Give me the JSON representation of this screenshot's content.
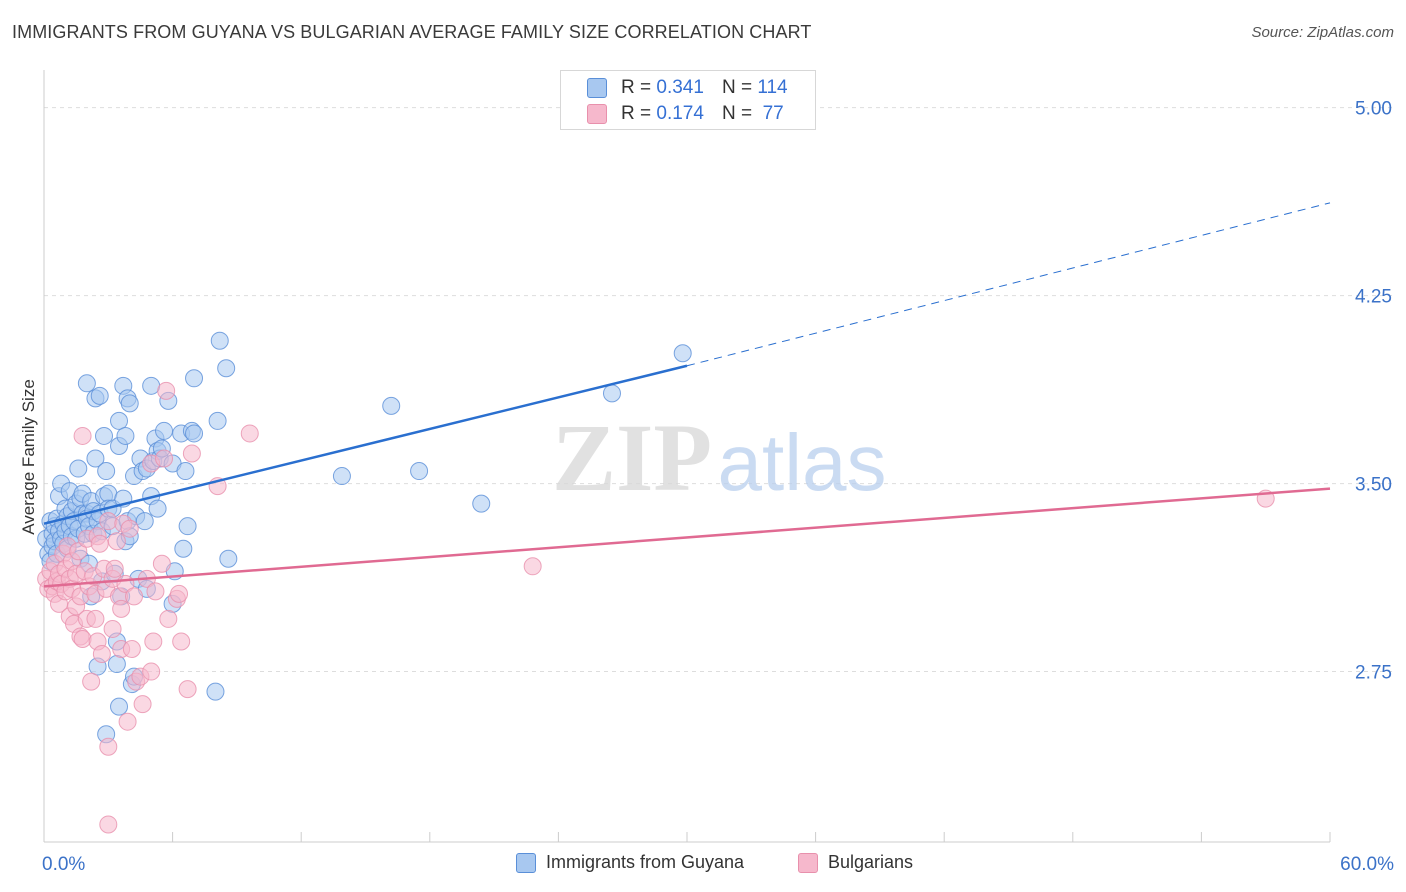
{
  "title": "IMMIGRANTS FROM GUYANA VS BULGARIAN AVERAGE FAMILY SIZE CORRELATION CHART",
  "source": "Source: ZipAtlas.com",
  "watermark": {
    "zip": "ZIP",
    "atlas": "atlas"
  },
  "legend": {
    "series1": {
      "r_label": "R =",
      "r_value": "0.341",
      "n_label": "N =",
      "n_value": "114"
    },
    "series2": {
      "r_label": "R =",
      "r_value": "0.174",
      "n_label": "N =",
      "n_value": "77"
    }
  },
  "bottom_legend": {
    "series1": "Immigrants from Guyana",
    "series2": "Bulgarians"
  },
  "colors": {
    "blue_fill": "#a8c8f0",
    "blue_stroke": "#5a8fd8",
    "blue_line": "#2a6fcf",
    "pink_fill": "#f6b8cc",
    "pink_stroke": "#e890ac",
    "pink_line": "#e06a92",
    "axis_text": "#3b72c8",
    "grid": "#dddddd"
  },
  "chart_data": {
    "type": "scatter",
    "title": "IMMIGRANTS FROM GUYANA VS BULGARIAN AVERAGE FAMILY SIZE CORRELATION CHART",
    "xlabel": "",
    "ylabel": "Average Family Size",
    "xlim": [
      0,
      60
    ],
    "ylim": [
      2.07,
      5.15
    ],
    "x_tick_labels": [
      "0.0%",
      "60.0%"
    ],
    "y_ticks": [
      2.75,
      3.5,
      4.25,
      5.0
    ],
    "y_tick_labels": [
      "2.75",
      "3.50",
      "4.25",
      "5.00"
    ],
    "grid": true,
    "series": [
      {
        "name": "Immigrants from Guyana",
        "color": "#5a8fd8",
        "points": [
          [
            0.1,
            3.28
          ],
          [
            0.2,
            3.22
          ],
          [
            0.3,
            3.35
          ],
          [
            0.3,
            3.19
          ],
          [
            0.4,
            3.3
          ],
          [
            0.4,
            3.25
          ],
          [
            0.5,
            3.33
          ],
          [
            0.5,
            3.27
          ],
          [
            0.6,
            3.36
          ],
          [
            0.6,
            3.22
          ],
          [
            0.7,
            3.31
          ],
          [
            0.7,
            3.45
          ],
          [
            0.8,
            3.28
          ],
          [
            0.8,
            3.5
          ],
          [
            0.9,
            3.34
          ],
          [
            0.9,
            3.26
          ],
          [
            1.0,
            3.4
          ],
          [
            1.0,
            3.31
          ],
          [
            1.1,
            3.37
          ],
          [
            1.1,
            3.24
          ],
          [
            1.2,
            3.47
          ],
          [
            1.2,
            3.33
          ],
          [
            1.3,
            3.29
          ],
          [
            1.3,
            3.39
          ],
          [
            1.4,
            3.35
          ],
          [
            1.5,
            3.42
          ],
          [
            1.5,
            3.28
          ],
          [
            1.6,
            3.56
          ],
          [
            1.6,
            3.32
          ],
          [
            1.7,
            3.44
          ],
          [
            1.7,
            3.2
          ],
          [
            1.8,
            3.38
          ],
          [
            1.8,
            3.46
          ],
          [
            1.9,
            3.3
          ],
          [
            2.0,
            3.9
          ],
          [
            2.0,
            3.38
          ],
          [
            2.0,
            3.36
          ],
          [
            2.1,
            3.18
          ],
          [
            2.1,
            3.33
          ],
          [
            2.2,
            3.43
          ],
          [
            2.2,
            3.05
          ],
          [
            2.3,
            3.3
          ],
          [
            2.3,
            3.39
          ],
          [
            2.4,
            3.84
          ],
          [
            2.4,
            3.6
          ],
          [
            2.5,
            3.35
          ],
          [
            2.5,
            2.77
          ],
          [
            2.6,
            3.85
          ],
          [
            2.6,
            3.38
          ],
          [
            2.7,
            3.31
          ],
          [
            2.7,
            3.11
          ],
          [
            2.8,
            3.69
          ],
          [
            2.8,
            3.45
          ],
          [
            2.9,
            3.55
          ],
          [
            2.9,
            2.5
          ],
          [
            3.0,
            3.46
          ],
          [
            3.0,
            3.4
          ],
          [
            3.2,
            3.4
          ],
          [
            3.2,
            3.33
          ],
          [
            3.3,
            3.14
          ],
          [
            3.4,
            2.87
          ],
          [
            3.4,
            2.78
          ],
          [
            3.5,
            3.75
          ],
          [
            3.5,
            3.65
          ],
          [
            3.5,
            2.61
          ],
          [
            3.6,
            3.05
          ],
          [
            3.7,
            3.44
          ],
          [
            3.7,
            3.89
          ],
          [
            3.8,
            3.69
          ],
          [
            3.8,
            3.27
          ],
          [
            3.9,
            3.35
          ],
          [
            3.9,
            3.84
          ],
          [
            4.0,
            3.82
          ],
          [
            4.0,
            3.29
          ],
          [
            4.1,
            2.7
          ],
          [
            4.2,
            3.53
          ],
          [
            4.2,
            2.73
          ],
          [
            4.3,
            3.37
          ],
          [
            4.4,
            3.12
          ],
          [
            4.5,
            3.6
          ],
          [
            4.6,
            3.55
          ],
          [
            4.7,
            3.35
          ],
          [
            4.8,
            3.08
          ],
          [
            4.8,
            3.56
          ],
          [
            5.0,
            3.45
          ],
          [
            5.0,
            3.89
          ],
          [
            5.1,
            3.59
          ],
          [
            5.2,
            3.68
          ],
          [
            5.3,
            3.63
          ],
          [
            5.3,
            3.4
          ],
          [
            5.4,
            3.6
          ],
          [
            5.5,
            3.64
          ],
          [
            5.6,
            3.71
          ],
          [
            5.8,
            3.83
          ],
          [
            6.0,
            3.58
          ],
          [
            6.0,
            3.02
          ],
          [
            6.1,
            3.15
          ],
          [
            6.4,
            3.7
          ],
          [
            6.5,
            3.24
          ],
          [
            6.6,
            3.55
          ],
          [
            6.7,
            3.33
          ],
          [
            6.9,
            3.71
          ],
          [
            7.0,
            3.7
          ],
          [
            7.0,
            3.92
          ],
          [
            8.0,
            2.67
          ],
          [
            8.1,
            3.75
          ],
          [
            8.2,
            4.07
          ],
          [
            8.5,
            3.96
          ],
          [
            8.6,
            3.2
          ],
          [
            13.9,
            3.53
          ],
          [
            16.2,
            3.81
          ],
          [
            17.5,
            3.55
          ],
          [
            20.4,
            3.42
          ],
          [
            26.5,
            3.86
          ],
          [
            29.8,
            4.02
          ]
        ]
      },
      {
        "name": "Bulgarians",
        "color": "#e890ac",
        "points": [
          [
            0.1,
            3.12
          ],
          [
            0.2,
            3.08
          ],
          [
            0.3,
            3.15
          ],
          [
            0.4,
            3.09
          ],
          [
            0.5,
            3.18
          ],
          [
            0.5,
            3.06
          ],
          [
            0.6,
            3.11
          ],
          [
            0.7,
            3.14
          ],
          [
            0.7,
            3.02
          ],
          [
            0.8,
            3.1
          ],
          [
            0.9,
            3.22
          ],
          [
            1.0,
            3.07
          ],
          [
            1.0,
            3.16
          ],
          [
            1.1,
            3.25
          ],
          [
            1.2,
            3.12
          ],
          [
            1.2,
            2.97
          ],
          [
            1.3,
            3.19
          ],
          [
            1.3,
            3.08
          ],
          [
            1.4,
            2.94
          ],
          [
            1.5,
            3.14
          ],
          [
            1.5,
            3.01
          ],
          [
            1.6,
            3.23
          ],
          [
            1.7,
            3.05
          ],
          [
            1.7,
            2.89
          ],
          [
            1.8,
            2.88
          ],
          [
            1.8,
            3.69
          ],
          [
            1.9,
            3.15
          ],
          [
            2.0,
            3.28
          ],
          [
            2.0,
            2.96
          ],
          [
            2.1,
            3.09
          ],
          [
            2.2,
            2.71
          ],
          [
            2.3,
            3.13
          ],
          [
            2.4,
            2.96
          ],
          [
            2.4,
            3.06
          ],
          [
            2.5,
            3.29
          ],
          [
            2.5,
            2.87
          ],
          [
            2.6,
            3.26
          ],
          [
            2.7,
            2.82
          ],
          [
            2.8,
            3.16
          ],
          [
            2.9,
            3.08
          ],
          [
            3.0,
            3.35
          ],
          [
            3.0,
            2.45
          ],
          [
            3.0,
            2.14
          ],
          [
            3.2,
            3.12
          ],
          [
            3.2,
            2.92
          ],
          [
            3.3,
            3.16
          ],
          [
            3.4,
            3.27
          ],
          [
            3.5,
            3.05
          ],
          [
            3.6,
            3.0
          ],
          [
            3.6,
            2.84
          ],
          [
            3.7,
            3.34
          ],
          [
            3.8,
            3.1
          ],
          [
            3.9,
            2.55
          ],
          [
            4.0,
            3.32
          ],
          [
            4.1,
            2.84
          ],
          [
            4.2,
            3.05
          ],
          [
            4.3,
            2.71
          ],
          [
            4.5,
            2.73
          ],
          [
            4.6,
            2.62
          ],
          [
            4.8,
            3.12
          ],
          [
            5.0,
            2.75
          ],
          [
            5.0,
            3.58
          ],
          [
            5.1,
            2.87
          ],
          [
            5.2,
            3.07
          ],
          [
            5.5,
            3.18
          ],
          [
            5.6,
            3.6
          ],
          [
            5.7,
            3.87
          ],
          [
            5.8,
            2.96
          ],
          [
            6.2,
            3.04
          ],
          [
            6.3,
            3.06
          ],
          [
            6.4,
            2.87
          ],
          [
            6.7,
            2.68
          ],
          [
            6.9,
            3.62
          ],
          [
            8.1,
            3.49
          ],
          [
            9.6,
            3.7
          ],
          [
            22.8,
            3.17
          ],
          [
            57.0,
            3.44
          ]
        ]
      }
    ],
    "trendlines": [
      {
        "series": "Immigrants from Guyana",
        "x0": 0,
        "y0": 3.34,
        "x1": 30,
        "y1": 3.97,
        "extrapolated_to_x": 60,
        "extrapolated_y": 4.62
      },
      {
        "series": "Bulgarians",
        "x0": 0,
        "y0": 3.09,
        "x1": 60,
        "y1": 3.48
      }
    ]
  }
}
